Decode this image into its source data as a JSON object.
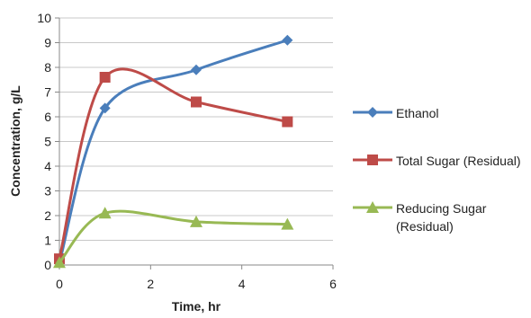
{
  "chart_data": {
    "type": "line",
    "smooth": true,
    "xlabel": "Time, hr",
    "ylabel": "Concentration, g/L",
    "xlim": [
      0,
      6
    ],
    "ylim": [
      0,
      10
    ],
    "x_ticks": [
      "0",
      "2",
      "4",
      "6"
    ],
    "y_ticks": [
      "0",
      "1",
      "2",
      "3",
      "4",
      "5",
      "6",
      "7",
      "8",
      "9",
      "10"
    ],
    "grid": "horizontal",
    "legend_position": "right",
    "series": [
      {
        "name": "Ethanol",
        "color": "#4a7ebb",
        "marker": "diamond",
        "points": [
          [
            0,
            0.1
          ],
          [
            1,
            6.35
          ],
          [
            3,
            7.9
          ],
          [
            5,
            9.1
          ]
        ]
      },
      {
        "name": "Total Sugar (Residual)",
        "color": "#be4b48",
        "marker": "square",
        "points": [
          [
            0,
            0.25
          ],
          [
            1,
            7.6
          ],
          [
            3,
            6.6
          ],
          [
            5,
            5.8
          ]
        ]
      },
      {
        "name": "Reducing Sugar (Residual)",
        "color": "#98b954",
        "marker": "triangle",
        "points": [
          [
            0,
            0.1
          ],
          [
            1,
            2.1
          ],
          [
            3,
            1.75
          ],
          [
            5,
            1.65
          ]
        ]
      }
    ]
  }
}
